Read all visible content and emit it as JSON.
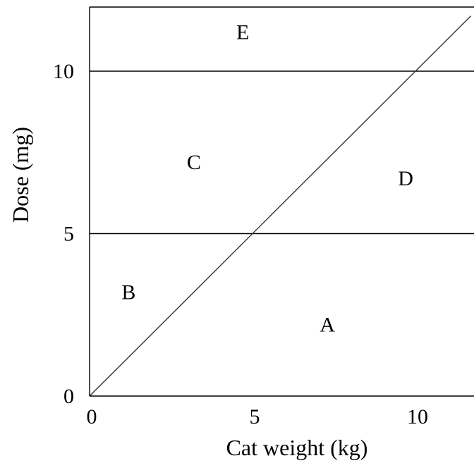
{
  "chart_data": {
    "type": "line",
    "title": "",
    "xlabel": "Cat weight (kg)",
    "ylabel": "Dose (mg)",
    "xlim": [
      0,
      11.7
    ],
    "ylim": [
      0,
      12
    ],
    "x_ticks": [
      {
        "value": 0,
        "label": "0"
      },
      {
        "value": 5,
        "label": "5"
      },
      {
        "value": 10,
        "label": "10"
      }
    ],
    "y_ticks": [
      {
        "value": 0,
        "label": "0"
      },
      {
        "value": 5,
        "label": "5"
      },
      {
        "value": 10,
        "label": "10"
      }
    ],
    "horizontal_lines": [
      5,
      10
    ],
    "series": [
      {
        "x": [
          0,
          11.7
        ],
        "y": [
          0,
          11.7
        ],
        "color": "#333333"
      }
    ],
    "regions": [
      {
        "label": "A",
        "x": 7.3,
        "y": 2.2
      },
      {
        "label": "B",
        "x": 1.2,
        "y": 3.2
      },
      {
        "label": "C",
        "x": 3.2,
        "y": 7.2
      },
      {
        "label": "D",
        "x": 9.7,
        "y": 6.7
      },
      {
        "label": "E",
        "x": 4.7,
        "y": 11.2
      }
    ],
    "grid": false,
    "legend": "none"
  }
}
